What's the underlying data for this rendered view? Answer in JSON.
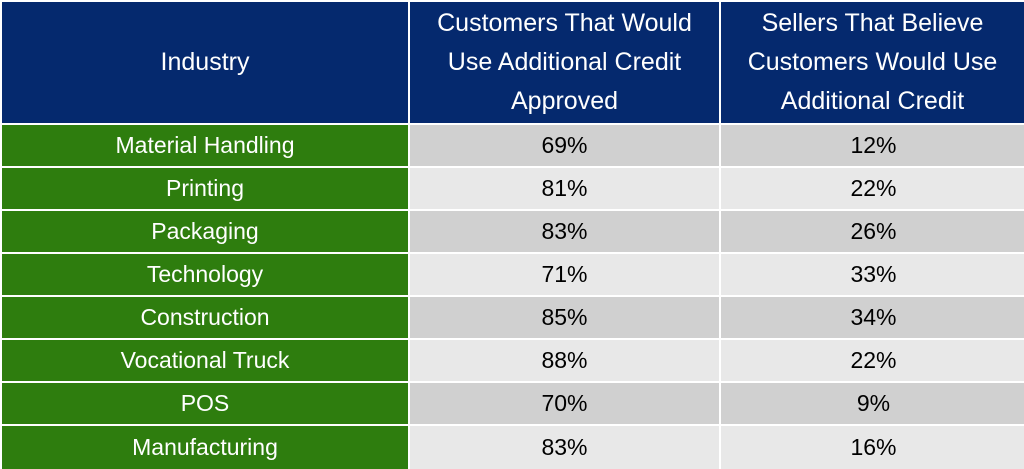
{
  "chart_data": {
    "type": "table",
    "columns": [
      "Industry",
      "Customers That Would Use Additional Credit Approved",
      "Sellers That Believe Customers Would Use Additional Credit"
    ],
    "rows": [
      [
        "Material Handling",
        "69%",
        "12%"
      ],
      [
        "Printing",
        "81%",
        "22%"
      ],
      [
        "Packaging",
        "83%",
        "26%"
      ],
      [
        "Technology",
        "71%",
        "33%"
      ],
      [
        "Construction",
        "85%",
        "34%"
      ],
      [
        "Vocational Truck",
        "88%",
        "22%"
      ],
      [
        "POS",
        "70%",
        "9%"
      ],
      [
        "Manufacturing",
        "83%",
        "16%"
      ]
    ]
  },
  "colors": {
    "header_background": "#05296e",
    "industry_background": "#2e7d0e",
    "row_odd_background": "#d0d0d0",
    "row_even_background": "#e8e8e8"
  }
}
